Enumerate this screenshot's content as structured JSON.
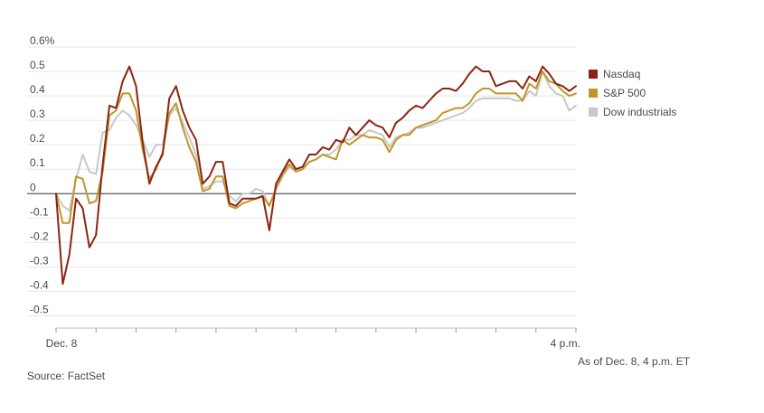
{
  "chart_data": {
    "type": "line",
    "title": "",
    "xlabel": "",
    "ylabel": "",
    "ylim": [
      -0.55,
      0.6
    ],
    "y_ticks": [
      0.6,
      0.5,
      0.4,
      0.3,
      0.2,
      0.1,
      0,
      -0.1,
      -0.2,
      -0.3,
      -0.4,
      -0.5
    ],
    "y_tick_labels": [
      "0.6%",
      "0.5",
      "0.4",
      "0.3",
      "0.2",
      "0.1",
      "0",
      "-0.1",
      "-0.2",
      "-0.3",
      "-0.4",
      "-0.5"
    ],
    "x_range": [
      0,
      390
    ],
    "x_major_ticks": [
      0,
      30,
      60,
      90,
      120,
      150,
      180,
      210,
      240,
      270,
      300,
      330,
      360,
      390
    ],
    "x_tick_labels": [
      {
        "x": 0,
        "label": "Dec. 8"
      },
      {
        "x": 390,
        "label": "4 p.m."
      }
    ],
    "x_unit": "minutes after market open",
    "grid": true,
    "legend_position": "right",
    "series": [
      {
        "name": "Nasdaq",
        "color": "#8b2513",
        "x": [
          0,
          5,
          10,
          15,
          20,
          25,
          30,
          35,
          40,
          45,
          50,
          55,
          60,
          65,
          70,
          75,
          80,
          85,
          90,
          95,
          100,
          105,
          110,
          115,
          120,
          125,
          130,
          135,
          140,
          145,
          150,
          155,
          160,
          165,
          170,
          175,
          180,
          185,
          190,
          195,
          200,
          205,
          210,
          215,
          220,
          225,
          230,
          235,
          240,
          245,
          250,
          255,
          260,
          265,
          270,
          275,
          280,
          285,
          290,
          295,
          300,
          305,
          310,
          315,
          320,
          325,
          330,
          335,
          340,
          345,
          350,
          355,
          360,
          365,
          370,
          375,
          380,
          385,
          390
        ],
        "values": [
          0.0,
          -0.37,
          -0.25,
          -0.02,
          -0.06,
          -0.22,
          -0.17,
          0.12,
          0.36,
          0.35,
          0.46,
          0.52,
          0.44,
          0.21,
          0.04,
          0.11,
          0.16,
          0.39,
          0.44,
          0.34,
          0.27,
          0.22,
          0.04,
          0.07,
          0.13,
          0.13,
          -0.04,
          -0.05,
          -0.02,
          -0.02,
          -0.02,
          -0.01,
          -0.15,
          0.04,
          0.09,
          0.14,
          0.1,
          0.11,
          0.16,
          0.16,
          0.19,
          0.18,
          0.22,
          0.21,
          0.27,
          0.24,
          0.27,
          0.3,
          0.28,
          0.27,
          0.23,
          0.29,
          0.31,
          0.34,
          0.36,
          0.35,
          0.38,
          0.41,
          0.43,
          0.43,
          0.42,
          0.45,
          0.49,
          0.52,
          0.5,
          0.5,
          0.44,
          0.45,
          0.46,
          0.46,
          0.43,
          0.48,
          0.46,
          0.52,
          0.49,
          0.45,
          0.44,
          0.42,
          0.44
        ]
      },
      {
        "name": "S&P 500",
        "color": "#c0962a",
        "x": [
          0,
          5,
          10,
          15,
          20,
          25,
          30,
          35,
          40,
          45,
          50,
          55,
          60,
          65,
          70,
          75,
          80,
          85,
          90,
          95,
          100,
          105,
          110,
          115,
          120,
          125,
          130,
          135,
          140,
          145,
          150,
          155,
          160,
          165,
          170,
          175,
          180,
          185,
          190,
          195,
          200,
          205,
          210,
          215,
          220,
          225,
          230,
          235,
          240,
          245,
          250,
          255,
          260,
          265,
          270,
          275,
          280,
          285,
          290,
          295,
          300,
          305,
          310,
          315,
          320,
          325,
          330,
          335,
          340,
          345,
          350,
          355,
          360,
          365,
          370,
          375,
          380,
          385,
          390
        ],
        "values": [
          0.0,
          -0.12,
          -0.12,
          0.07,
          0.06,
          -0.04,
          -0.03,
          0.09,
          0.32,
          0.34,
          0.41,
          0.41,
          0.34,
          0.18,
          0.06,
          0.1,
          0.17,
          0.33,
          0.37,
          0.27,
          0.19,
          0.13,
          0.01,
          0.02,
          0.07,
          0.07,
          -0.05,
          -0.06,
          -0.04,
          -0.03,
          -0.02,
          -0.01,
          -0.05,
          0.02,
          0.08,
          0.12,
          0.09,
          0.1,
          0.13,
          0.14,
          0.16,
          0.15,
          0.14,
          0.22,
          0.2,
          0.22,
          0.24,
          0.23,
          0.23,
          0.22,
          0.17,
          0.22,
          0.24,
          0.24,
          0.27,
          0.28,
          0.29,
          0.3,
          0.33,
          0.34,
          0.35,
          0.35,
          0.37,
          0.41,
          0.43,
          0.43,
          0.41,
          0.41,
          0.41,
          0.41,
          0.38,
          0.45,
          0.43,
          0.5,
          0.46,
          0.45,
          0.42,
          0.4,
          0.41
        ]
      },
      {
        "name": "Dow industrials",
        "color": "#c8c8c8",
        "x": [
          0,
          5,
          10,
          15,
          20,
          25,
          30,
          35,
          40,
          45,
          50,
          55,
          60,
          65,
          70,
          75,
          80,
          85,
          90,
          95,
          100,
          105,
          110,
          115,
          120,
          125,
          130,
          135,
          140,
          145,
          150,
          155,
          160,
          165,
          170,
          175,
          180,
          185,
          190,
          195,
          200,
          205,
          210,
          215,
          220,
          225,
          230,
          235,
          240,
          245,
          250,
          255,
          260,
          265,
          270,
          275,
          280,
          285,
          290,
          295,
          300,
          305,
          310,
          315,
          320,
          325,
          330,
          335,
          340,
          345,
          350,
          355,
          360,
          365,
          370,
          375,
          380,
          385,
          390
        ],
        "values": [
          0.0,
          -0.05,
          -0.07,
          0.06,
          0.16,
          0.09,
          0.08,
          0.25,
          0.26,
          0.31,
          0.34,
          0.32,
          0.28,
          0.22,
          0.15,
          0.2,
          0.2,
          0.32,
          0.35,
          0.29,
          0.23,
          0.16,
          0.02,
          0.03,
          0.05,
          0.05,
          -0.01,
          -0.03,
          0.0,
          0.0,
          0.02,
          0.01,
          -0.05,
          0.02,
          0.07,
          0.11,
          0.09,
          0.1,
          0.13,
          0.14,
          0.16,
          0.16,
          0.18,
          0.22,
          0.22,
          0.24,
          0.24,
          0.26,
          0.25,
          0.24,
          0.19,
          0.23,
          0.24,
          0.25,
          0.27,
          0.27,
          0.28,
          0.29,
          0.3,
          0.31,
          0.32,
          0.33,
          0.35,
          0.38,
          0.39,
          0.39,
          0.39,
          0.39,
          0.39,
          0.38,
          0.38,
          0.42,
          0.4,
          0.5,
          0.44,
          0.41,
          0.4,
          0.34,
          0.36
        ]
      }
    ],
    "annotations": [
      "As of Dec. 8, 4 p.m. ET"
    ],
    "source": "Source: FactSet"
  }
}
